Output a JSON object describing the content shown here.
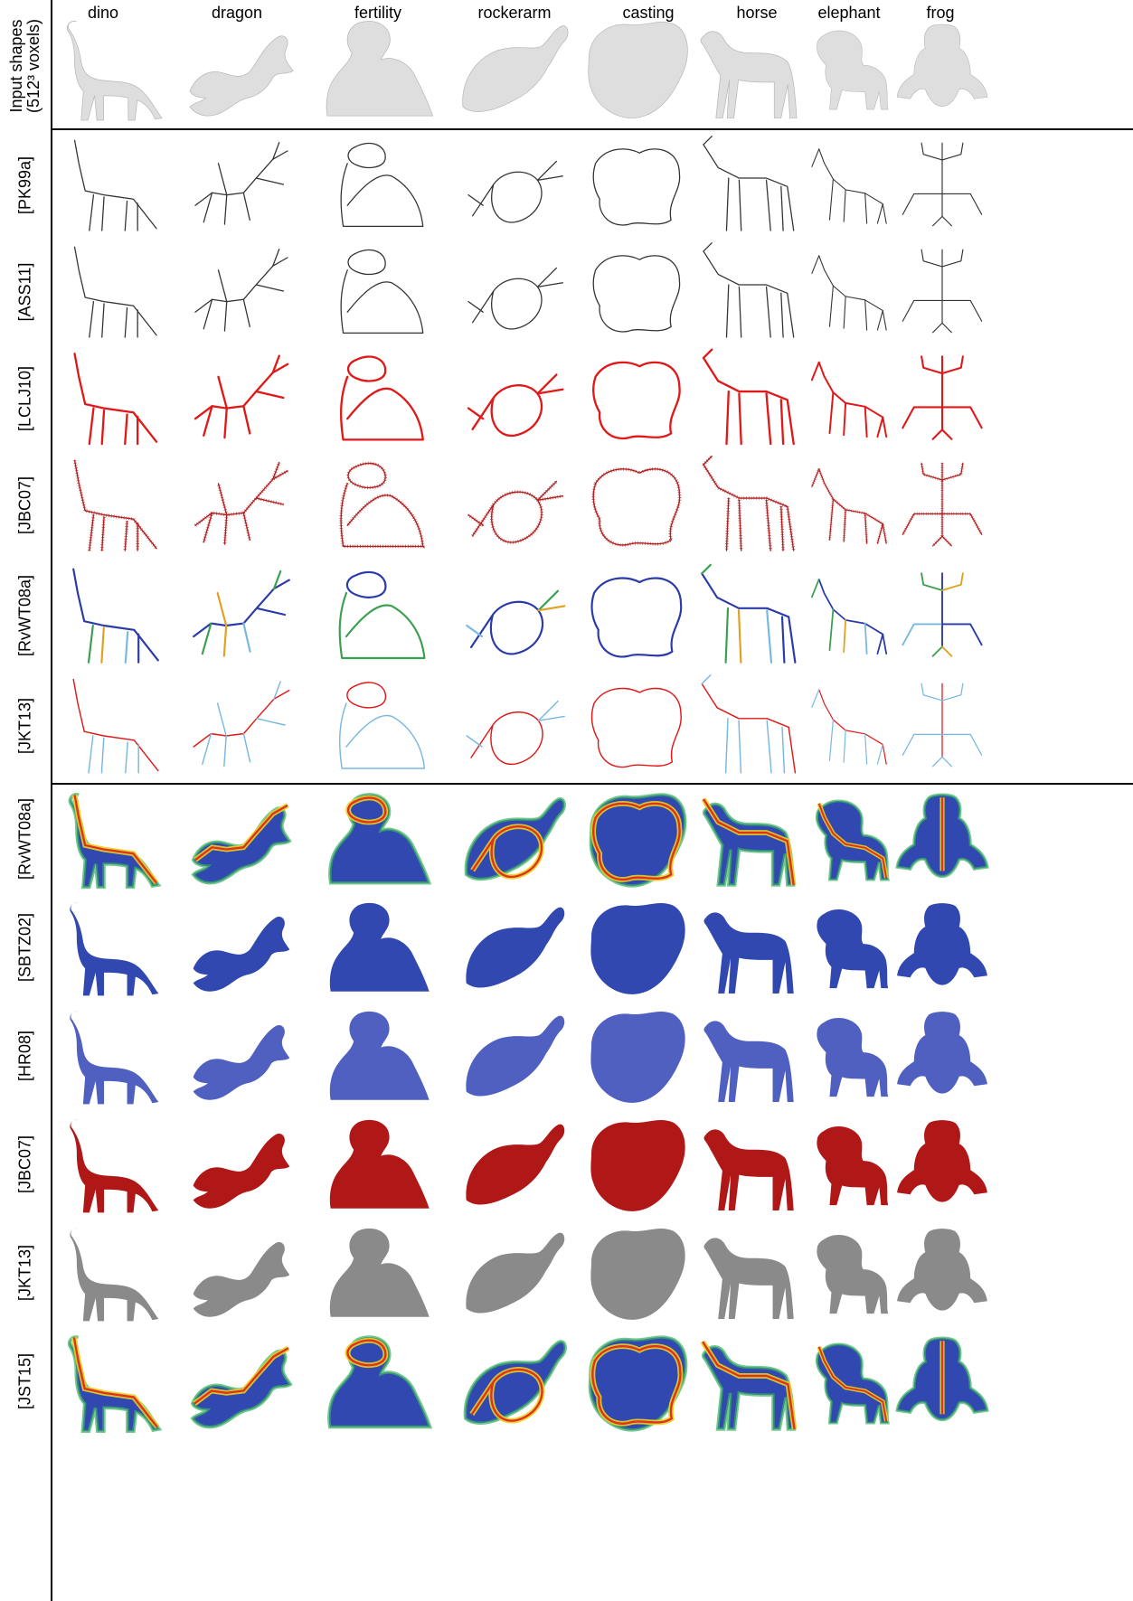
{
  "columns": [
    "dino",
    "dragon",
    "fertility",
    "rockerarm",
    "casting",
    "horse",
    "elephant",
    "frog"
  ],
  "input_row_label": [
    "Input shapes",
    "(512³ voxels)"
  ],
  "curve_rows": [
    "[PK99a]",
    "[ASS11]",
    "[LCLJ10]",
    "[JBC07]",
    "[RvWT08a]",
    "[JKT13]"
  ],
  "surface_rows": [
    "[RvWT08a]",
    "[SBTZ02]",
    "[HR08]",
    "[JBC07]",
    "[JKT13]",
    "[JST15]"
  ],
  "colors": {
    "input_gray": "#dedede",
    "skeleton_black": "#333333",
    "skeleton_red": "#e01818",
    "skeleton_darkred": "#b02020",
    "skeleton_blue": "#2a3aa8",
    "skeleton_lightblue": "#78b8e0",
    "surface_blue": "#3048b0",
    "surface_lightblue": "#5060c0",
    "surface_red": "#b01818",
    "surface_gray": "#8a8a8a"
  }
}
